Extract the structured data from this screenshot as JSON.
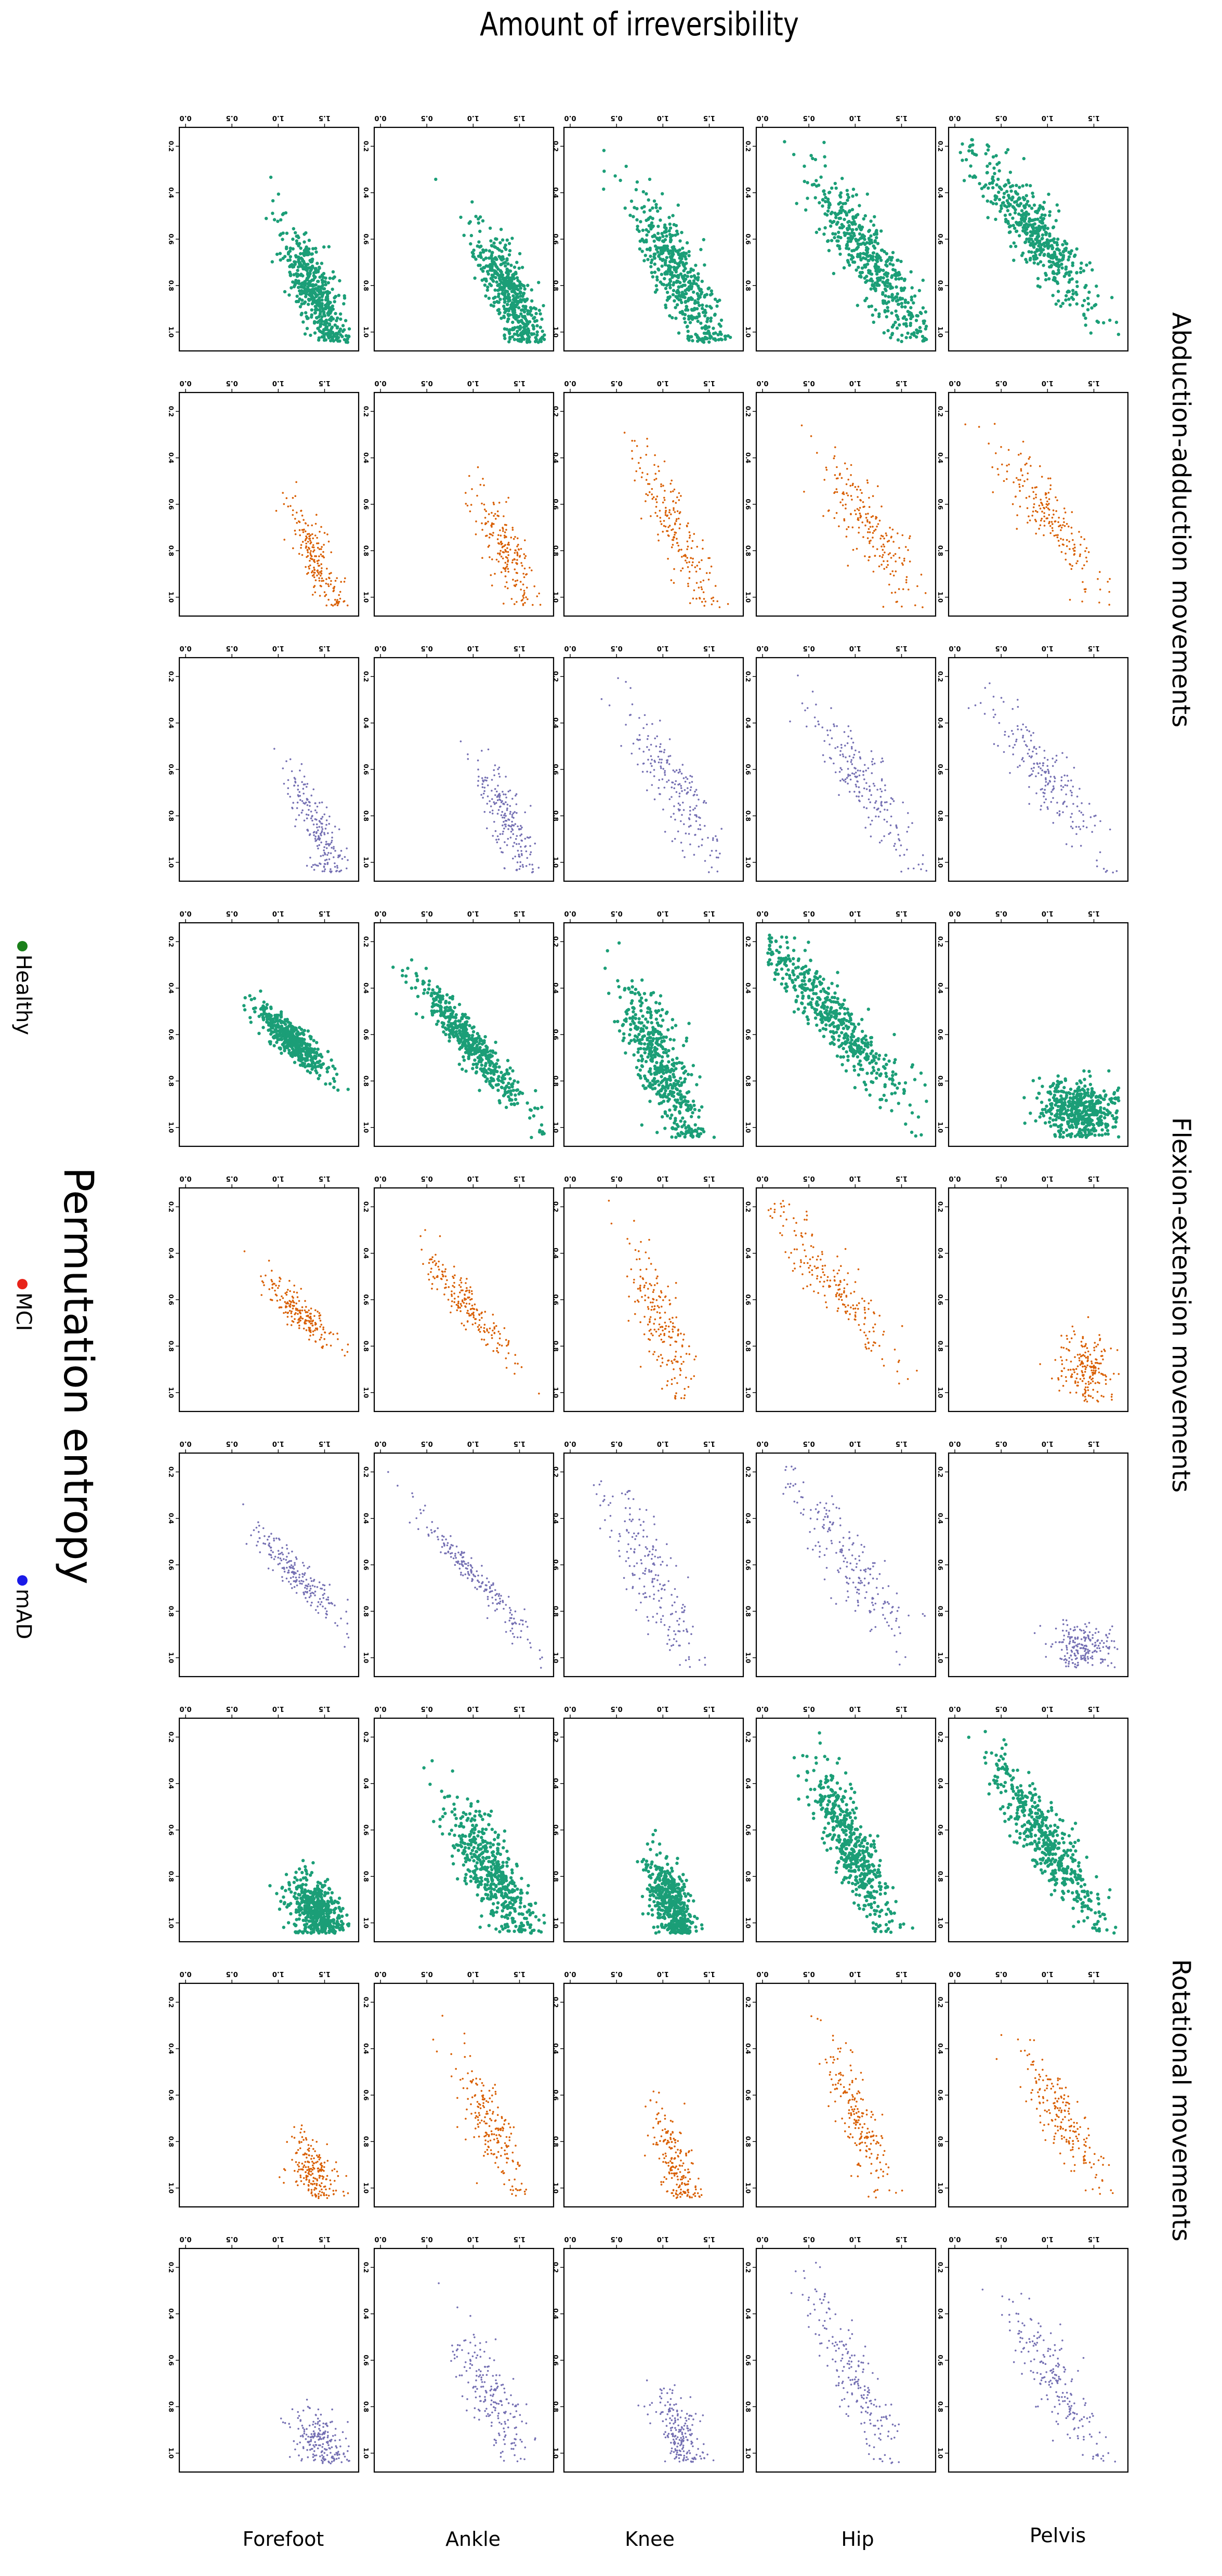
{
  "chart_data": {
    "type": "scatter",
    "title": "Amount of irreversibility",
    "ylabel": "Permutation entropy",
    "x_ticks": [
      "0.0",
      "0.5",
      "1.0",
      "1.5"
    ],
    "y_ticks": [
      "0.2",
      "0.4",
      "0.6",
      "0.8",
      "1.0"
    ],
    "xlim": [
      0,
      1.8
    ],
    "ylim": [
      0.15,
      1.05
    ],
    "legend": [
      {
        "name": "Healthy",
        "color": "#1a7f1a"
      },
      {
        "name": "MCI",
        "color": "#e8231a"
      },
      {
        "name": "mAD",
        "color": "#1a1ae8"
      }
    ],
    "group_colors": {
      "Healthy": "#1b9e77",
      "MCI": "#d95f02",
      "mAD": "#7570b3"
    },
    "joints": [
      "Forefoot",
      "Ankle",
      "Knee",
      "Hip",
      "Pelvis"
    ],
    "movement_groups": [
      "Abduction-adduction movements",
      "Flexion-extension movements",
      "Rotational movements"
    ],
    "panels": [
      {
        "movement": "Abduction-adduction movements",
        "group": "Healthy",
        "n": 500,
        "series": [
          {
            "joint": "Forefoot",
            "x_mean": 0.45,
            "x_sd": 0.28,
            "y_at_x0": 0.96,
            "slope": -0.24,
            "noise": 0.06
          },
          {
            "joint": "Ankle",
            "x_mean": 0.45,
            "x_sd": 0.28,
            "y_at_x0": 0.96,
            "slope": -0.26,
            "noise": 0.06
          },
          {
            "joint": "Knee",
            "x_mean": 0.6,
            "x_sd": 0.35,
            "y_at_x0": 0.9,
            "slope": -0.28,
            "noise": 0.07
          },
          {
            "joint": "Hip",
            "x_mean": 0.75,
            "x_sd": 0.35,
            "y_at_x0": 1.0,
            "slope": -0.38,
            "noise": 0.08
          },
          {
            "joint": "Pelvis",
            "x_mean": 0.95,
            "x_sd": 0.35,
            "y_at_x0": 0.98,
            "slope": -0.42,
            "noise": 0.08
          }
        ]
      },
      {
        "movement": "Abduction-adduction movements",
        "group": "MCI",
        "n": 200,
        "series": [
          {
            "joint": "Forefoot",
            "x_mean": 0.45,
            "x_sd": 0.25,
            "y_at_x0": 0.96,
            "slope": -0.25,
            "noise": 0.05
          },
          {
            "joint": "Ankle",
            "x_mean": 0.5,
            "x_sd": 0.25,
            "y_at_x0": 0.96,
            "slope": -0.27,
            "noise": 0.05
          },
          {
            "joint": "Knee",
            "x_mean": 0.65,
            "x_sd": 0.35,
            "y_at_x0": 0.9,
            "slope": -0.27,
            "noise": 0.06
          },
          {
            "joint": "Hip",
            "x_mean": 0.7,
            "x_sd": 0.3,
            "y_at_x0": 0.98,
            "slope": -0.36,
            "noise": 0.07
          },
          {
            "joint": "Pelvis",
            "x_mean": 0.8,
            "x_sd": 0.3,
            "y_at_x0": 0.98,
            "slope": -0.4,
            "noise": 0.07
          }
        ]
      },
      {
        "movement": "Abduction-adduction movements",
        "group": "mAD",
        "n": 200,
        "series": [
          {
            "joint": "Forefoot",
            "x_mean": 0.4,
            "x_sd": 0.25,
            "y_at_x0": 0.96,
            "slope": -0.25,
            "noise": 0.05
          },
          {
            "joint": "Ankle",
            "x_mean": 0.45,
            "x_sd": 0.25,
            "y_at_x0": 0.96,
            "slope": -0.27,
            "noise": 0.05
          },
          {
            "joint": "Knee",
            "x_mean": 0.75,
            "x_sd": 0.35,
            "y_at_x0": 0.95,
            "slope": -0.32,
            "noise": 0.07
          },
          {
            "joint": "Hip",
            "x_mean": 0.75,
            "x_sd": 0.35,
            "y_at_x0": 1.0,
            "slope": -0.38,
            "noise": 0.07
          },
          {
            "joint": "Pelvis",
            "x_mean": 0.85,
            "x_sd": 0.3,
            "y_at_x0": 0.98,
            "slope": -0.4,
            "noise": 0.07
          }
        ]
      },
      {
        "movement": "Flexion-extension movements",
        "group": "Healthy",
        "n": 500,
        "series": [
          {
            "joint": "Forefoot",
            "x_mean": 0.85,
            "x_sd": 0.15,
            "y_at_x0": 1.2,
            "slope": -0.55,
            "noise": 0.05
          },
          {
            "joint": "Ankle",
            "x_mean": 0.8,
            "x_sd": 0.28,
            "y_at_x0": 1.05,
            "slope": -0.5,
            "noise": 0.05
          },
          {
            "joint": "Knee",
            "x_mean": 0.65,
            "x_sd": 0.35,
            "y_at_x0": 0.8,
            "slope": -0.25,
            "noise": 0.07
          },
          {
            "joint": "Hip",
            "x_mean": 1.05,
            "x_sd": 0.35,
            "y_at_x0": 1.05,
            "slope": -0.5,
            "noise": 0.07
          },
          {
            "joint": "Pelvis",
            "x_mean": 0.25,
            "x_sd": 0.12,
            "y_at_x0": 0.85,
            "slope": -0.1,
            "noise": 0.1
          }
        ]
      },
      {
        "movement": "Flexion-extension movements",
        "group": "MCI",
        "n": 200,
        "series": [
          {
            "joint": "Forefoot",
            "x_mean": 0.8,
            "x_sd": 0.15,
            "y_at_x0": 1.2,
            "slope": -0.55,
            "noise": 0.05
          },
          {
            "joint": "Ankle",
            "x_mean": 0.85,
            "x_sd": 0.25,
            "y_at_x0": 1.05,
            "slope": -0.5,
            "noise": 0.05
          },
          {
            "joint": "Knee",
            "x_mean": 0.75,
            "x_sd": 0.35,
            "y_at_x0": 0.78,
            "slope": -0.2,
            "noise": 0.06
          },
          {
            "joint": "Hip",
            "x_mean": 1.05,
            "x_sd": 0.35,
            "y_at_x0": 1.0,
            "slope": -0.45,
            "noise": 0.07
          },
          {
            "joint": "Pelvis",
            "x_mean": 0.3,
            "x_sd": 0.15,
            "y_at_x0": 0.88,
            "slope": -0.1,
            "noise": 0.08
          }
        ]
      },
      {
        "movement": "Flexion-extension movements",
        "group": "mAD",
        "n": 200,
        "series": [
          {
            "joint": "Forefoot",
            "x_mean": 0.8,
            "x_sd": 0.2,
            "y_at_x0": 1.2,
            "slope": -0.55,
            "noise": 0.05
          },
          {
            "joint": "Ankle",
            "x_mean": 0.8,
            "x_sd": 0.28,
            "y_at_x0": 1.1,
            "slope": -0.55,
            "noise": 0.04
          },
          {
            "joint": "Knee",
            "x_mean": 0.75,
            "x_sd": 0.4,
            "y_at_x0": 0.82,
            "slope": -0.28,
            "noise": 0.07
          },
          {
            "joint": "Hip",
            "x_mean": 0.95,
            "x_sd": 0.4,
            "y_at_x0": 1.0,
            "slope": -0.42,
            "noise": 0.08
          },
          {
            "joint": "Pelvis",
            "x_mean": 0.2,
            "x_sd": 0.1,
            "y_at_x0": 0.85,
            "slope": -0.1,
            "noise": 0.09
          }
        ]
      },
      {
        "movement": "Rotational movements",
        "group": "Healthy",
        "n": 500,
        "series": [
          {
            "joint": "Forefoot",
            "x_mean": 0.2,
            "x_sd": 0.15,
            "y_at_x0": 0.9,
            "slope": -0.2,
            "noise": 0.07
          },
          {
            "joint": "Ankle",
            "x_mean": 0.55,
            "x_sd": 0.3,
            "y_at_x0": 0.92,
            "slope": -0.32,
            "noise": 0.07
          },
          {
            "joint": "Knee",
            "x_mean": 0.25,
            "x_sd": 0.2,
            "y_at_x0": 0.75,
            "slope": -0.2,
            "noise": 0.05
          },
          {
            "joint": "Hip",
            "x_mean": 0.75,
            "x_sd": 0.35,
            "y_at_x0": 0.82,
            "slope": -0.25,
            "noise": 0.06
          },
          {
            "joint": "Pelvis",
            "x_mean": 0.8,
            "x_sd": 0.35,
            "y_at_x0": 0.95,
            "slope": -0.38,
            "noise": 0.07
          }
        ]
      },
      {
        "movement": "Rotational movements",
        "group": "MCI",
        "n": 200,
        "series": [
          {
            "joint": "Forefoot",
            "x_mean": 0.25,
            "x_sd": 0.15,
            "y_at_x0": 0.9,
            "slope": -0.2,
            "noise": 0.06
          },
          {
            "joint": "Ankle",
            "x_mean": 0.6,
            "x_sd": 0.3,
            "y_at_x0": 0.92,
            "slope": -0.28,
            "noise": 0.06
          },
          {
            "joint": "Knee",
            "x_mean": 0.3,
            "x_sd": 0.25,
            "y_at_x0": 0.78,
            "slope": -0.2,
            "noise": 0.05
          },
          {
            "joint": "Hip",
            "x_mean": 0.7,
            "x_sd": 0.35,
            "y_at_x0": 0.82,
            "slope": -0.22,
            "noise": 0.05
          },
          {
            "joint": "Pelvis",
            "x_mean": 0.7,
            "x_sd": 0.3,
            "y_at_x0": 0.95,
            "slope": -0.32,
            "noise": 0.06
          }
        ]
      },
      {
        "movement": "Rotational movements",
        "group": "mAD",
        "n": 200,
        "series": [
          {
            "joint": "Forefoot",
            "x_mean": 0.2,
            "x_sd": 0.15,
            "y_at_x0": 0.92,
            "slope": -0.2,
            "noise": 0.07
          },
          {
            "joint": "Ankle",
            "x_mean": 0.6,
            "x_sd": 0.3,
            "y_at_x0": 0.92,
            "slope": -0.28,
            "noise": 0.07
          },
          {
            "joint": "Knee",
            "x_mean": 0.25,
            "x_sd": 0.2,
            "y_at_x0": 0.8,
            "slope": -0.2,
            "noise": 0.06
          },
          {
            "joint": "Hip",
            "x_mean": 0.75,
            "x_sd": 0.4,
            "y_at_x0": 0.85,
            "slope": -0.28,
            "noise": 0.06
          },
          {
            "joint": "Pelvis",
            "x_mean": 0.75,
            "x_sd": 0.35,
            "y_at_x0": 0.95,
            "slope": -0.35,
            "noise": 0.07
          }
        ]
      }
    ]
  }
}
